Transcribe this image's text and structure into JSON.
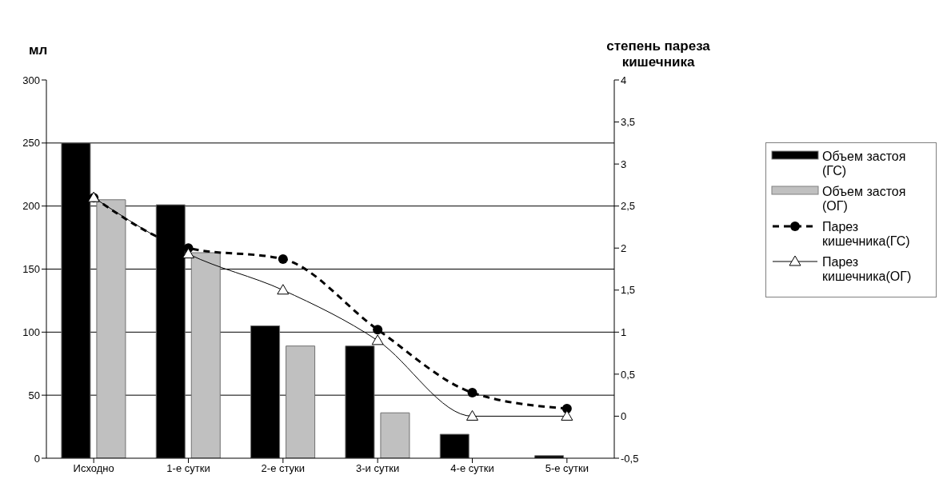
{
  "chart_data": {
    "type": "bar",
    "ylabel": "мл",
    "y2label": "степень пареза кишечника",
    "categories": [
      "Исходно",
      "1-е сутки",
      "2-е стуки",
      "3-и сутки",
      "4-е сутки",
      "5-е сутки"
    ],
    "series": [
      {
        "name": "Объем застоя (ГС)",
        "color": "#000000",
        "values": [
          250,
          201,
          105,
          89,
          19,
          2
        ]
      },
      {
        "name": "Объем застоя (ОГ)",
        "color": "#c0c0c0",
        "values": [
          205,
          163,
          89,
          36,
          0,
          0
        ]
      },
      {
        "name": "Парез кишечника(ГС)",
        "type": "line",
        "axis": "y2",
        "color": "#000000",
        "line_style": "dashed",
        "marker": "circle",
        "values": [
          2.6,
          2.0,
          1.87,
          1.03,
          0.28,
          0.09
        ]
      },
      {
        "name": "Парез кишечника(ОГ)",
        "type": "line",
        "axis": "y2",
        "color": "#000000",
        "line_style": "solid",
        "marker": "triangle",
        "values": [
          2.6,
          1.93,
          1.5,
          0.9,
          0,
          0
        ]
      }
    ],
    "ylim": [
      0,
      300
    ],
    "yticks": [
      0,
      50,
      100,
      150,
      200,
      250,
      300
    ],
    "y2lim": [
      -0.5,
      4
    ],
    "y2ticks": [
      {
        "value": -0.5,
        "label": "-0,5"
      },
      0,
      {
        "value": 0.5,
        "label": "0,5"
      },
      1,
      {
        "value": 1.5,
        "label": "1,5"
      },
      2,
      {
        "value": 2.5,
        "label": "2,5"
      },
      3,
      {
        "value": 3.5,
        "label": "3,5"
      },
      4
    ],
    "grid": "y",
    "legend": "right"
  }
}
